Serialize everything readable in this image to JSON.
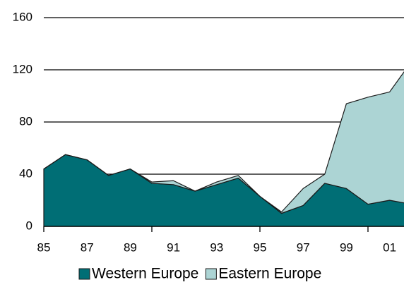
{
  "chart_data": {
    "type": "area",
    "stacked": true,
    "categories": [
      "85",
      null,
      "87",
      null,
      "89",
      null,
      "91",
      null,
      "93",
      null,
      "95",
      null,
      "97",
      null,
      "99",
      null,
      "01",
      null
    ],
    "series": [
      {
        "name": "Western Europe",
        "color": "#006e75",
        "values": [
          44,
          55,
          51,
          39,
          44,
          33,
          32,
          27,
          32,
          37,
          23,
          10,
          16,
          33,
          29,
          17,
          20,
          17
        ]
      },
      {
        "name": "Eastern Europe",
        "color": "#acd4d4",
        "values": [
          0,
          0,
          0,
          0,
          0,
          1,
          3,
          0,
          2,
          2,
          0,
          1,
          13,
          7,
          65,
          82,
          83,
          109
        ]
      }
    ],
    "ylim": [
      0,
      160
    ],
    "yticks": [
      0,
      40,
      80,
      120,
      160
    ],
    "grid": true
  }
}
